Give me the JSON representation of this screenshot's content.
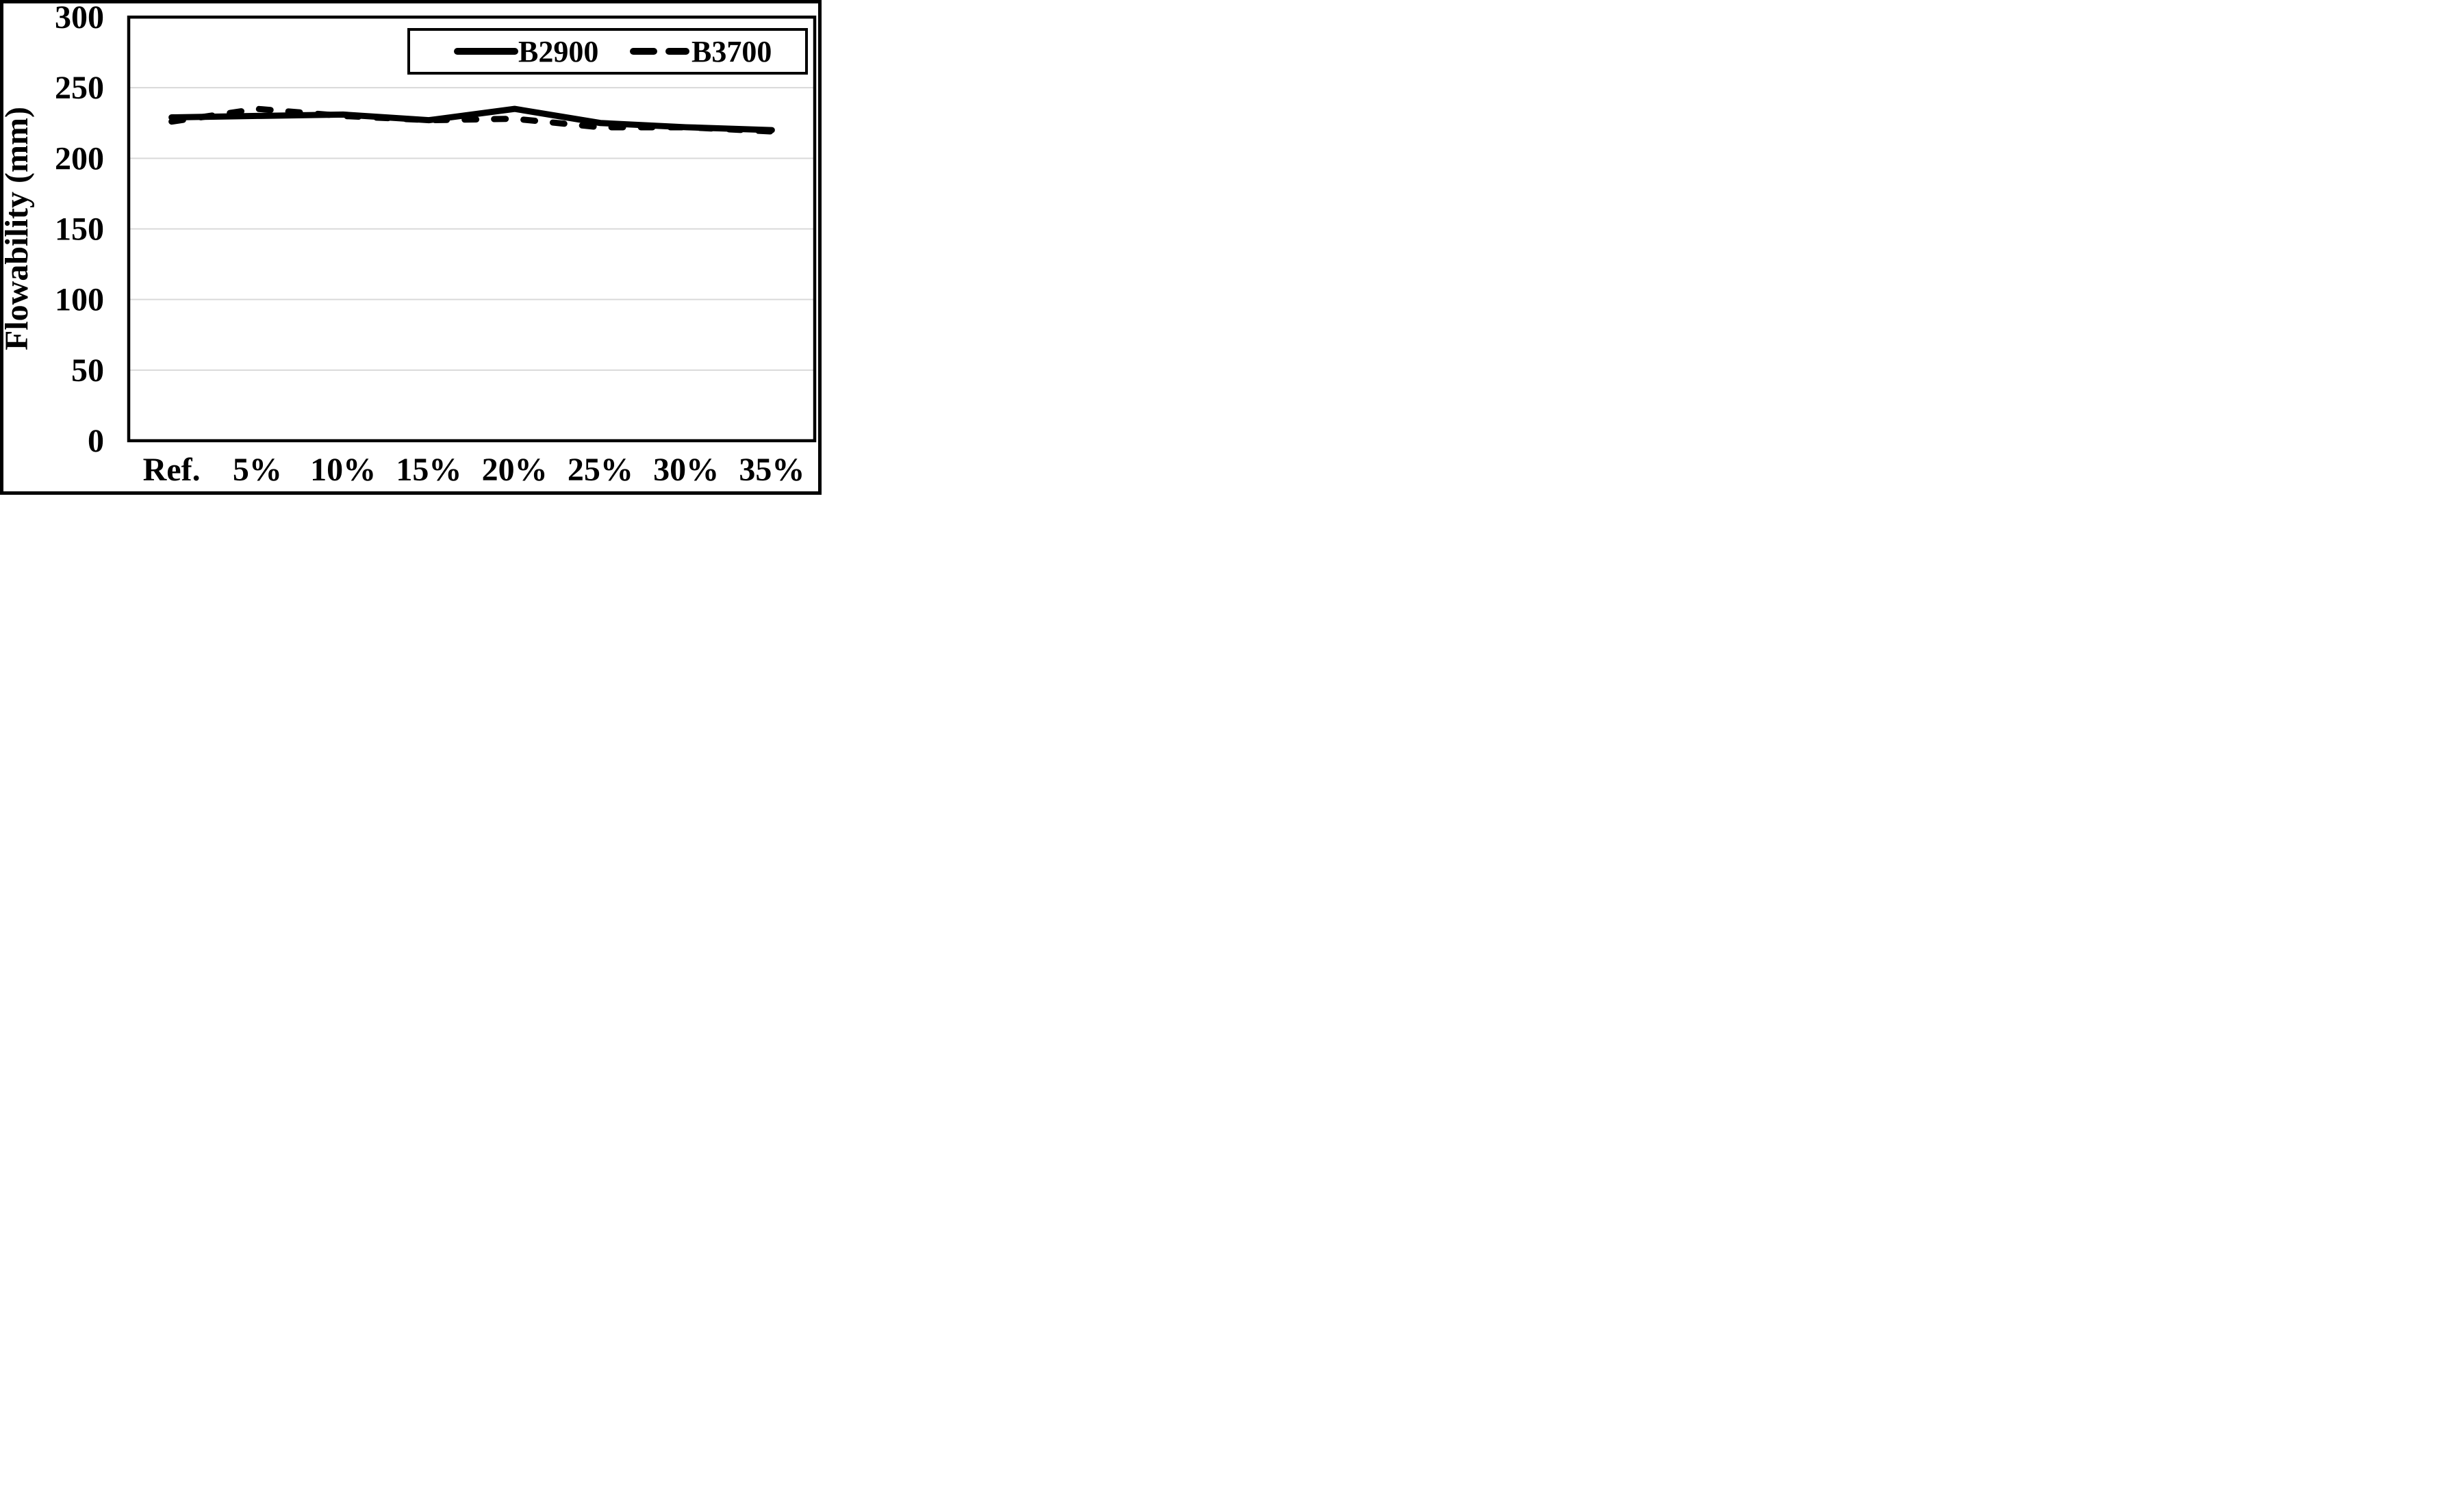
{
  "chart_data": {
    "type": "line",
    "title": "",
    "categories": [
      "Ref.",
      "5%",
      "10%",
      "15%",
      "20%",
      "25%",
      "30%",
      "35%"
    ],
    "series": [
      {
        "name": "B2900",
        "style": "solid",
        "values": [
          229,
          230,
          231,
          227,
          235,
          225,
          222,
          220
        ]
      },
      {
        "name": "B3700",
        "style": "dashed",
        "values": [
          226,
          235,
          230,
          227,
          228,
          222,
          222,
          219
        ]
      }
    ],
    "xlabel": "",
    "ylabel": "Flowability (mm)",
    "ylim": [
      0,
      300
    ],
    "ytick_step": 50,
    "yticks": [
      300,
      250,
      200,
      150,
      100,
      50,
      0
    ],
    "grid": true,
    "legend_position": "top-right-inside",
    "colors": {
      "line": "#000000",
      "gridline": "#d9d9d9",
      "background": "#ffffff",
      "frame": "#000000",
      "text": "#000000"
    }
  }
}
